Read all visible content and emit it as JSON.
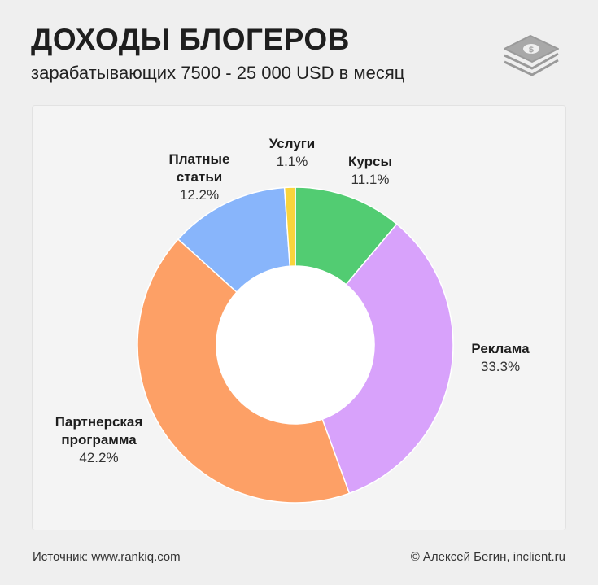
{
  "header": {
    "title": "ДОХОДЫ БЛОГЕРОВ",
    "subtitle": "зарабатывающих 7500 - 25 000 USD в месяц"
  },
  "icon": "money-stack-icon",
  "chart_data": {
    "type": "pie",
    "donut": true,
    "slices": [
      {
        "name": "Курсы",
        "value": 11.1,
        "label": "11.1%",
        "color": "#52cc72"
      },
      {
        "name": "Реклама",
        "value": 33.3,
        "label": "33.3%",
        "color": "#d8a2fb"
      },
      {
        "name": "Партнерская программа",
        "value": 42.2,
        "label": "42.2%",
        "color": "#fda066"
      },
      {
        "name": "Платные статьи",
        "value": 12.2,
        "label": "12.2%",
        "color": "#88b5fb"
      },
      {
        "name": "Услуги",
        "value": 1.1,
        "label": "1.1%",
        "color": "#f9d43c"
      }
    ]
  },
  "labels": {
    "kursy": {
      "name": "Курсы",
      "pct": "11.1%"
    },
    "reklama": {
      "name": "Реклама",
      "pct": "33.3%"
    },
    "partner": {
      "name1": "Партнерская",
      "name2": "программа",
      "pct": "42.2%"
    },
    "statyi": {
      "name1": "Платные",
      "name2": "статьи",
      "pct": "12.2%"
    },
    "uslugi": {
      "name": "Услуги",
      "pct": "1.1%"
    }
  },
  "footer": {
    "source": "Источник: www.rankiq.com",
    "credit": "© Алексей Бегин, inclient.ru"
  }
}
